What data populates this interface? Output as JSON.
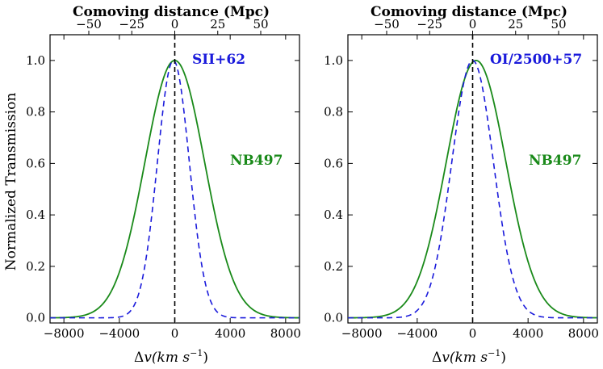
{
  "figure": {
    "ylabel": "Normalized  Transmission",
    "xlabel_prefix": "Δ",
    "xlabel_var": "v",
    "xlabel_units": "(km s",
    "xlabel_exp": "−1",
    "xlabel_close": ")",
    "top_axis_title": "Comoving distance (Mpc)"
  },
  "chart_data": [
    {
      "type": "line",
      "name": "left-panel",
      "xlim": [
        -9000,
        9000
      ],
      "ylim": [
        -0.02,
        1.1
      ],
      "xticks": [
        -8000,
        -4000,
        0,
        4000,
        8000
      ],
      "xtick_labels": [
        "−8000",
        "−4000",
        "0",
        "4000",
        "8000"
      ],
      "yticks": [
        0.0,
        0.2,
        0.4,
        0.6,
        0.8,
        1.0
      ],
      "ytick_labels": [
        "0.0",
        "0.2",
        "0.4",
        "0.6",
        "0.8",
        "1.0"
      ],
      "top_ticks_mpc": [
        -50,
        -25,
        0,
        25,
        50
      ],
      "top_tick_labels": [
        "−50",
        "−25",
        "0",
        "25",
        "50"
      ],
      "mpc_per_kms": 0.00806,
      "series": [
        {
          "name": "NB497",
          "style": "solid",
          "color": "#1a8a1a",
          "center": 0,
          "sigma": 2150
        },
        {
          "name": "SII+62",
          "style": "dashed",
          "color": "#1a1adb",
          "center": -100,
          "sigma": 1150
        }
      ],
      "vline_x": 0,
      "annotations": [
        {
          "text": "SII+62",
          "color": "blue"
        },
        {
          "text": "NB497",
          "color": "green"
        }
      ]
    },
    {
      "type": "line",
      "name": "right-panel",
      "xlim": [
        -9000,
        9000
      ],
      "ylim": [
        -0.02,
        1.1
      ],
      "xticks": [
        -8000,
        -4000,
        0,
        4000,
        8000
      ],
      "xtick_labels": [
        "−8000",
        "−4000",
        "0",
        "4000",
        "8000"
      ],
      "yticks": [
        0.0,
        0.2,
        0.4,
        0.6,
        0.8,
        1.0
      ],
      "ytick_labels": [
        "0.0",
        "0.2",
        "0.4",
        "0.6",
        "0.8",
        "1.0"
      ],
      "top_ticks_mpc": [
        -50,
        -25,
        0,
        25,
        50
      ],
      "top_tick_labels": [
        "−50",
        "−25",
        "0",
        "25",
        "50"
      ],
      "mpc_per_kms": 0.00806,
      "series": [
        {
          "name": "NB497",
          "style": "solid",
          "color": "#1a8a1a",
          "center": 250,
          "sigma": 2150
        },
        {
          "name": "OI/2500+57",
          "style": "dashed",
          "color": "#1a1adb",
          "center": 0,
          "sigma": 1500
        }
      ],
      "vline_x": 0,
      "annotations": [
        {
          "text": "OI/2500+57",
          "color": "blue"
        },
        {
          "text": "NB497",
          "color": "green"
        }
      ]
    }
  ]
}
